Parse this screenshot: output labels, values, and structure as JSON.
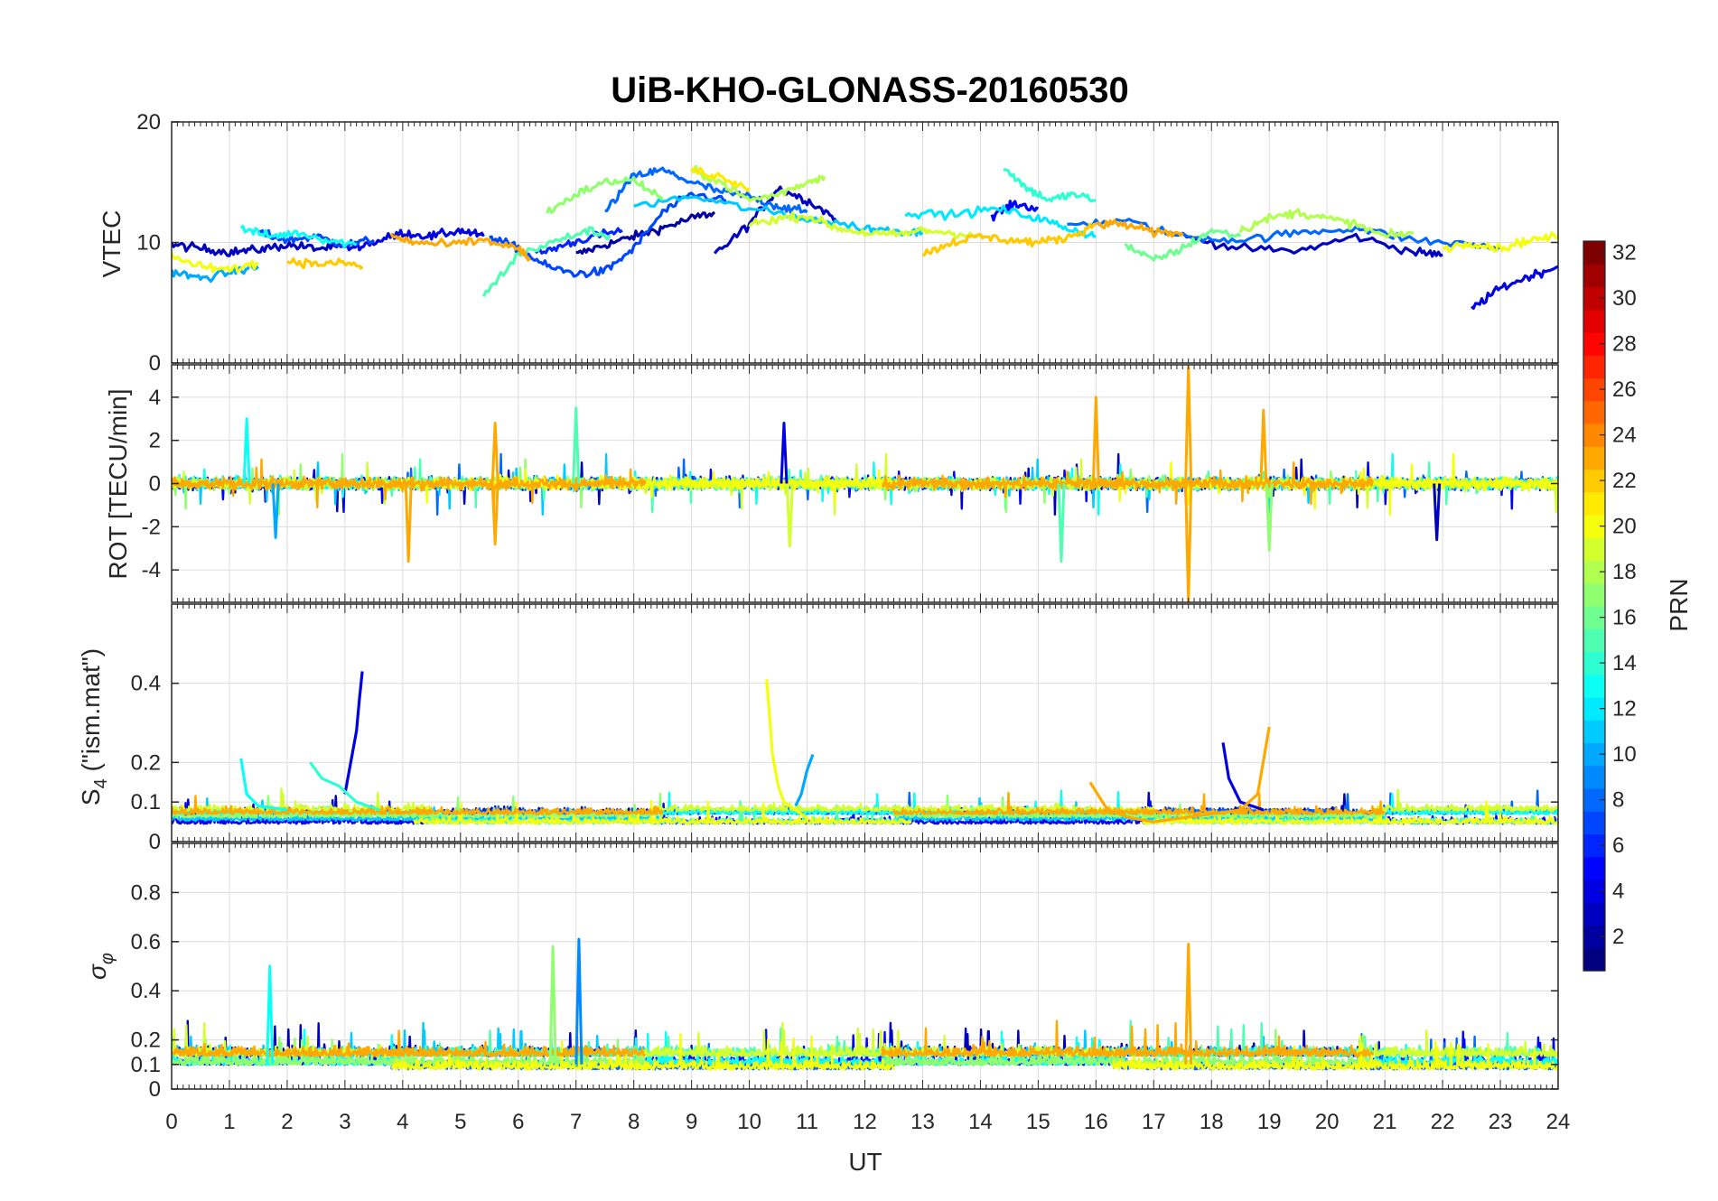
{
  "chart_data": {
    "type": "line",
    "title": "UiB-KHO-GLONASS-20160530",
    "xlabel": "UT",
    "xlim": [
      0,
      24
    ],
    "xticks": [
      "0",
      "1",
      "2",
      "3",
      "4",
      "5",
      "6",
      "7",
      "8",
      "9",
      "10",
      "11",
      "12",
      "13",
      "14",
      "15",
      "16",
      "17",
      "18",
      "19",
      "20",
      "21",
      "22",
      "23",
      "24"
    ],
    "colorbar": {
      "label": "PRN",
      "range": [
        1,
        32
      ],
      "ticks": [
        "2",
        "4",
        "6",
        "8",
        "10",
        "12",
        "14",
        "16",
        "18",
        "20",
        "22",
        "24",
        "26",
        "28",
        "30",
        "32"
      ],
      "colormap": "jet"
    },
    "panels": [
      {
        "name": "vtec",
        "ylabel": "VTEC",
        "ylim": [
          0,
          20
        ],
        "yticks": [
          "0",
          "10",
          "20"
        ],
        "series": [
          {
            "prn": 2,
            "x": [
              7.0,
              7.5,
              8.0,
              8.5,
              9.0,
              9.4
            ],
            "y": [
              9.0,
              9.8,
              10.5,
              11.2,
              12.0,
              12.5
            ]
          },
          {
            "prn": 3,
            "x": [
              0.0,
              0.5,
              1.0,
              1.5,
              2.0,
              2.5,
              3.0
            ],
            "y": [
              9.8,
              9.5,
              9.2,
              9.4,
              9.8,
              9.5,
              9.6
            ]
          },
          {
            "prn": 3,
            "x": [
              9.4,
              10.0,
              10.5,
              11.0,
              11.5
            ],
            "y": [
              9.0,
              11.5,
              14.5,
              13.5,
              12.0
            ]
          },
          {
            "prn": 3,
            "x": [
              17.5,
              18.5,
              19.5,
              20.5,
              21.5,
              22.0
            ],
            "y": [
              10.5,
              9.5,
              9.3,
              10.5,
              9.2,
              9.0
            ]
          },
          {
            "prn": 4,
            "x": [
              3.0,
              3.5,
              4.0,
              4.5,
              5.0,
              5.4
            ],
            "y": [
              9.5,
              10.0,
              10.8,
              10.5,
              11.0,
              10.5
            ]
          },
          {
            "prn": 4,
            "x": [
              22.5,
              23.0,
              23.5,
              24.0
            ],
            "y": [
              4.5,
              6.2,
              7.2,
              8.0
            ]
          },
          {
            "prn": 5,
            "x": [
              14.2,
              14.6,
              15.0
            ],
            "y": [
              12.2,
              13.2,
              12.8
            ]
          },
          {
            "prn": 6,
            "x": [
              6.3,
              6.8,
              7.3,
              7.8
            ],
            "y": [
              9.0,
              9.8,
              10.5,
              11.0
            ]
          },
          {
            "prn": 7,
            "x": [
              1.5,
              2.0,
              2.5,
              3.0,
              3.5
            ],
            "y": [
              10.8,
              10.2,
              10.5,
              9.8,
              10.2
            ]
          },
          {
            "prn": 7,
            "x": [
              5.5,
              6.0,
              6.5,
              7.0,
              7.5,
              8.0,
              8.5,
              9.0,
              9.6
            ],
            "y": [
              10.5,
              9.5,
              8.0,
              7.4,
              7.6,
              9.5,
              12.5,
              14.0,
              13.5
            ]
          },
          {
            "prn": 8,
            "x": [
              7.5,
              8.0,
              8.5,
              9.0,
              9.5,
              10.0,
              10.5,
              11.0
            ],
            "y": [
              12.5,
              15.5,
              16.0,
              15.0,
              14.2,
              13.8,
              13.0,
              12.5
            ]
          },
          {
            "prn": 8,
            "x": [
              15.5,
              16.5,
              17.5,
              18.5,
              19.5,
              20.5,
              21.5,
              22.5,
              23.0
            ],
            "y": [
              11.5,
              11.8,
              10.5,
              10.2,
              10.8,
              11.2,
              10.2,
              9.8,
              9.5
            ]
          },
          {
            "prn": 10,
            "x": [
              0.0,
              0.5,
              1.0,
              1.5
            ],
            "y": [
              7.6,
              7.0,
              7.5,
              8.0
            ]
          },
          {
            "prn": 11,
            "x": [
              8.0,
              9.0,
              10.0,
              11.0,
              12.0,
              12.5,
              13.0
            ],
            "y": [
              13.0,
              13.8,
              12.8,
              12.0,
              11.2,
              11.0,
              10.8
            ]
          },
          {
            "prn": 12,
            "x": [
              12.7,
              13.5,
              14.3,
              15.0,
              15.5,
              16.0
            ],
            "y": [
              12.5,
              12.3,
              12.8,
              12.0,
              11.2,
              10.5
            ]
          },
          {
            "prn": 13,
            "x": [
              1.2,
              1.7,
              2.2,
              2.7,
              3.2
            ],
            "y": [
              11.2,
              10.5,
              10.8,
              10.2,
              9.8
            ]
          },
          {
            "prn": 14,
            "x": [
              14.4,
              14.8,
              15.2,
              15.6,
              16.0
            ],
            "y": [
              16.3,
              14.5,
              13.5,
              14.0,
              13.5
            ]
          },
          {
            "prn": 15,
            "x": [
              5.4,
              6.0,
              6.6,
              7.2,
              7.6
            ],
            "y": [
              5.5,
              9.0,
              10.0,
              11.0,
              10.5
            ]
          },
          {
            "prn": 16,
            "x": [
              16.5,
              17.0,
              17.5,
              18.0,
              18.5
            ],
            "y": [
              9.8,
              8.5,
              9.5,
              11.0,
              10.5
            ]
          },
          {
            "prn": 17,
            "x": [
              6.5,
              7.0,
              7.5,
              8.0,
              8.5
            ],
            "y": [
              12.5,
              14.0,
              15.0,
              15.2,
              13.5
            ]
          },
          {
            "prn": 18,
            "x": [
              9.0,
              9.5,
              10.0,
              10.5,
              11.0,
              11.3
            ],
            "y": [
              16.0,
              15.0,
              13.5,
              14.0,
              15.0,
              15.5
            ]
          },
          {
            "prn": 18,
            "x": [
              18.5,
              19.0,
              19.5,
              20.0,
              20.5,
              21.0,
              21.5
            ],
            "y": [
              11.0,
              12.0,
              12.5,
              12.0,
              11.5,
              10.5,
              10.8
            ]
          },
          {
            "prn": 19,
            "x": [
              10.0,
              10.5,
              11.0,
              11.5,
              12.0,
              12.5,
              13.0,
              13.5,
              14.0
            ],
            "y": [
              11.5,
              12.0,
              12.2,
              11.2,
              10.8,
              10.6,
              11.0,
              10.8,
              10.5
            ]
          },
          {
            "prn": 20,
            "x": [
              0.0,
              0.5,
              1.0,
              1.5
            ],
            "y": [
              8.8,
              8.0,
              7.7,
              8.3
            ]
          },
          {
            "prn": 20,
            "x": [
              22.0,
              22.5,
              23.0,
              23.5,
              24.0
            ],
            "y": [
              9.5,
              10.0,
              9.5,
              10.2,
              10.5
            ]
          },
          {
            "prn": 21,
            "x": [
              9.0,
              9.5,
              10.0
            ],
            "y": [
              16.0,
              15.5,
              14.5
            ]
          },
          {
            "prn": 22,
            "x": [
              13.0,
              13.5,
              14.0,
              14.5,
              15.0,
              15.5,
              16.0
            ],
            "y": [
              9.0,
              10.0,
              10.5,
              10.2,
              10.0,
              10.4,
              11.5
            ]
          },
          {
            "prn": 22,
            "x": [
              2.0,
              2.5,
              3.0,
              3.3
            ],
            "y": [
              8.5,
              8.2,
              8.3,
              8.0
            ]
          },
          {
            "prn": 23,
            "x": [
              3.8,
              4.2,
              4.8,
              5.4,
              6.0,
              6.2
            ],
            "y": [
              10.5,
              10.0,
              9.8,
              10.2,
              9.5,
              8.5
            ]
          },
          {
            "prn": 23,
            "x": [
              16.0,
              16.5,
              17.0,
              17.5
            ],
            "y": [
              11.5,
              11.5,
              10.8,
              10.8
            ]
          }
        ]
      },
      {
        "name": "rot",
        "ylabel": "ROT [TECU/min]",
        "ylim": [
          -5.5,
          5.5
        ],
        "yticks": [
          "-4",
          "-2",
          "0",
          "2",
          "4"
        ],
        "spikes": [
          {
            "prn": 13,
            "x": 1.3,
            "value": 3.0
          },
          {
            "prn": 10,
            "x": 1.8,
            "value": -2.5
          },
          {
            "prn": 23,
            "x": 4.1,
            "value": -3.6
          },
          {
            "prn": 23,
            "x": 5.6,
            "value": 2.8
          },
          {
            "prn": 23,
            "x": 5.6,
            "value": -2.8
          },
          {
            "prn": 15,
            "x": 7.0,
            "value": 3.5
          },
          {
            "prn": 4,
            "x": 10.6,
            "value": 2.8
          },
          {
            "prn": 19,
            "x": 10.7,
            "value": -2.9
          },
          {
            "prn": 15,
            "x": 15.4,
            "value": -3.6
          },
          {
            "prn": 23,
            "x": 16.0,
            "value": 4.0
          },
          {
            "prn": 23,
            "x": 17.6,
            "value": 5.4
          },
          {
            "prn": 23,
            "x": 17.6,
            "value": -5.5
          },
          {
            "prn": 23,
            "x": 18.9,
            "value": 3.4
          },
          {
            "prn": 17,
            "x": 19.0,
            "value": -3.1
          },
          {
            "prn": 3,
            "x": 21.9,
            "value": -2.6
          }
        ]
      },
      {
        "name": "s4",
        "ylabel": "S4 (\"ism.mat\")",
        "ylim": [
          0,
          0.6
        ],
        "yticks": [
          "0",
          "0.1",
          "0.2",
          "0.4"
        ],
        "series": [
          {
            "prn": 4,
            "x": [
              3.0,
              3.1,
              3.2,
              3.25,
              3.3
            ],
            "y": [
              0.12,
              0.2,
              0.28,
              0.36,
              0.43
            ]
          },
          {
            "prn": 20,
            "x": [
              10.3,
              10.4,
              10.5,
              10.6,
              10.8,
              11.0
            ],
            "y": [
              0.41,
              0.22,
              0.14,
              0.1,
              0.08,
              0.06
            ]
          },
          {
            "prn": 10,
            "x": [
              10.8,
              10.9,
              11.0,
              11.1
            ],
            "y": [
              0.09,
              0.12,
              0.18,
              0.22
            ]
          },
          {
            "prn": 13,
            "x": [
              1.2,
              1.3,
              1.5,
              2.0
            ],
            "y": [
              0.21,
              0.12,
              0.09,
              0.08
            ]
          },
          {
            "prn": 14,
            "x": [
              2.4,
              2.6,
              2.9,
              3.2,
              3.6
            ],
            "y": [
              0.2,
              0.16,
              0.14,
              0.1,
              0.08
            ]
          },
          {
            "prn": 4,
            "x": [
              18.2,
              18.3,
              18.5,
              18.7,
              18.9
            ],
            "y": [
              0.25,
              0.16,
              0.1,
              0.09,
              0.08
            ]
          },
          {
            "prn": 23,
            "x": [
              17.5,
              18.0,
              18.5,
              18.8,
              19.0
            ],
            "y": [
              0.06,
              0.07,
              0.08,
              0.12,
              0.29
            ]
          },
          {
            "prn": 23,
            "x": [
              15.9,
              16.2,
              16.6,
              17.0,
              17.5
            ],
            "y": [
              0.15,
              0.08,
              0.06,
              0.05,
              0.06
            ]
          }
        ]
      },
      {
        "name": "sigma_phi",
        "ylabel": "σ_φ",
        "ylim": [
          0,
          1.0
        ],
        "yticks": [
          "0",
          "0.1",
          "0.2",
          "0.4",
          "0.6",
          "0.8"
        ],
        "spikes": [
          {
            "prn": 13,
            "x": 1.7,
            "value": 0.5
          },
          {
            "prn": 17,
            "x": 6.6,
            "value": 0.58
          },
          {
            "prn": 9,
            "x": 7.05,
            "value": 0.61
          },
          {
            "prn": 23,
            "x": 17.6,
            "value": 0.59
          }
        ]
      }
    ]
  }
}
